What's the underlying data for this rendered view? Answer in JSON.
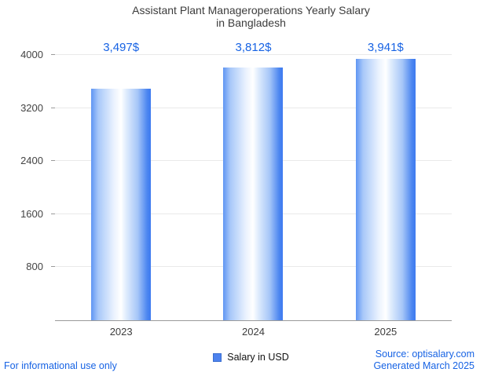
{
  "title": {
    "line1": "Assistant Plant Manageroperations Yearly Salary",
    "line2": "in Bangladesh"
  },
  "chart_data": {
    "type": "bar",
    "title": "Assistant Plant Manageroperations Yearly Salary in Bangladesh",
    "categories": [
      "2023",
      "2024",
      "2025"
    ],
    "values": [
      3497,
      3812,
      3941
    ],
    "value_labels": [
      "3,497$",
      "3,812$",
      "3,941$"
    ],
    "series_name": "Salary in USD",
    "xlabel": "",
    "ylabel": "",
    "ylim": [
      0,
      4000
    ],
    "yticks": [
      800,
      1600,
      2400,
      3200,
      4000
    ],
    "grid": true,
    "legend_position": "bottom"
  },
  "legend": {
    "label": "Salary in USD"
  },
  "footer": {
    "disclaimer": "For informational use only",
    "source": "Source: optisalary.com",
    "generated": "Generated March 2025"
  },
  "colors": {
    "accent_blue": "#1763e4",
    "bar_edge_blue": "#3d7af0",
    "bar_mid": "#ffffff",
    "legend_swatch": "#4d82ee",
    "axis_line": "#9a9a9a",
    "gridline": "#e9e9e9",
    "title_text": "#3c3c3c"
  }
}
